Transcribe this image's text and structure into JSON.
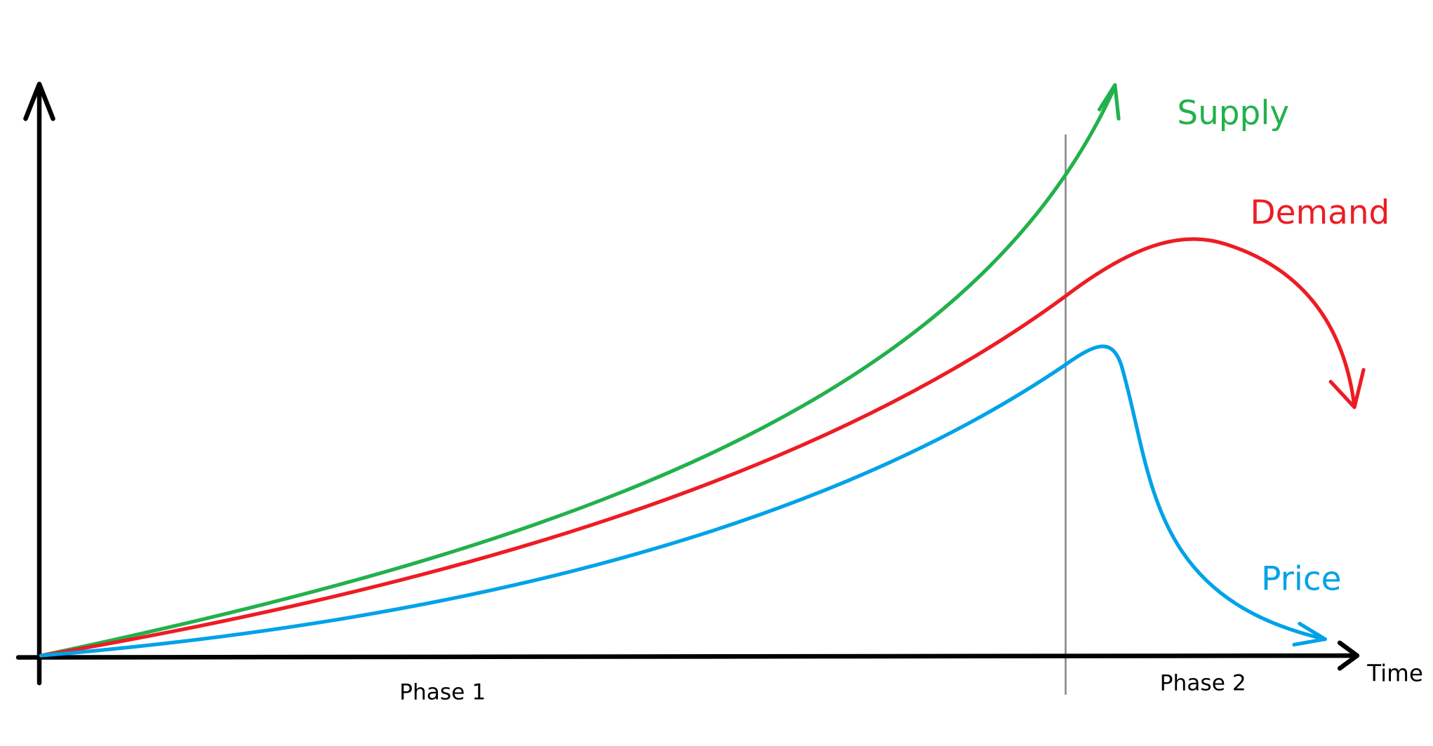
{
  "labels": {
    "supply": "Supply",
    "demand": "Demand",
    "price": "Price",
    "time": "Time",
    "phase1": "Phase 1",
    "phase2": "Phase 2"
  }
}
